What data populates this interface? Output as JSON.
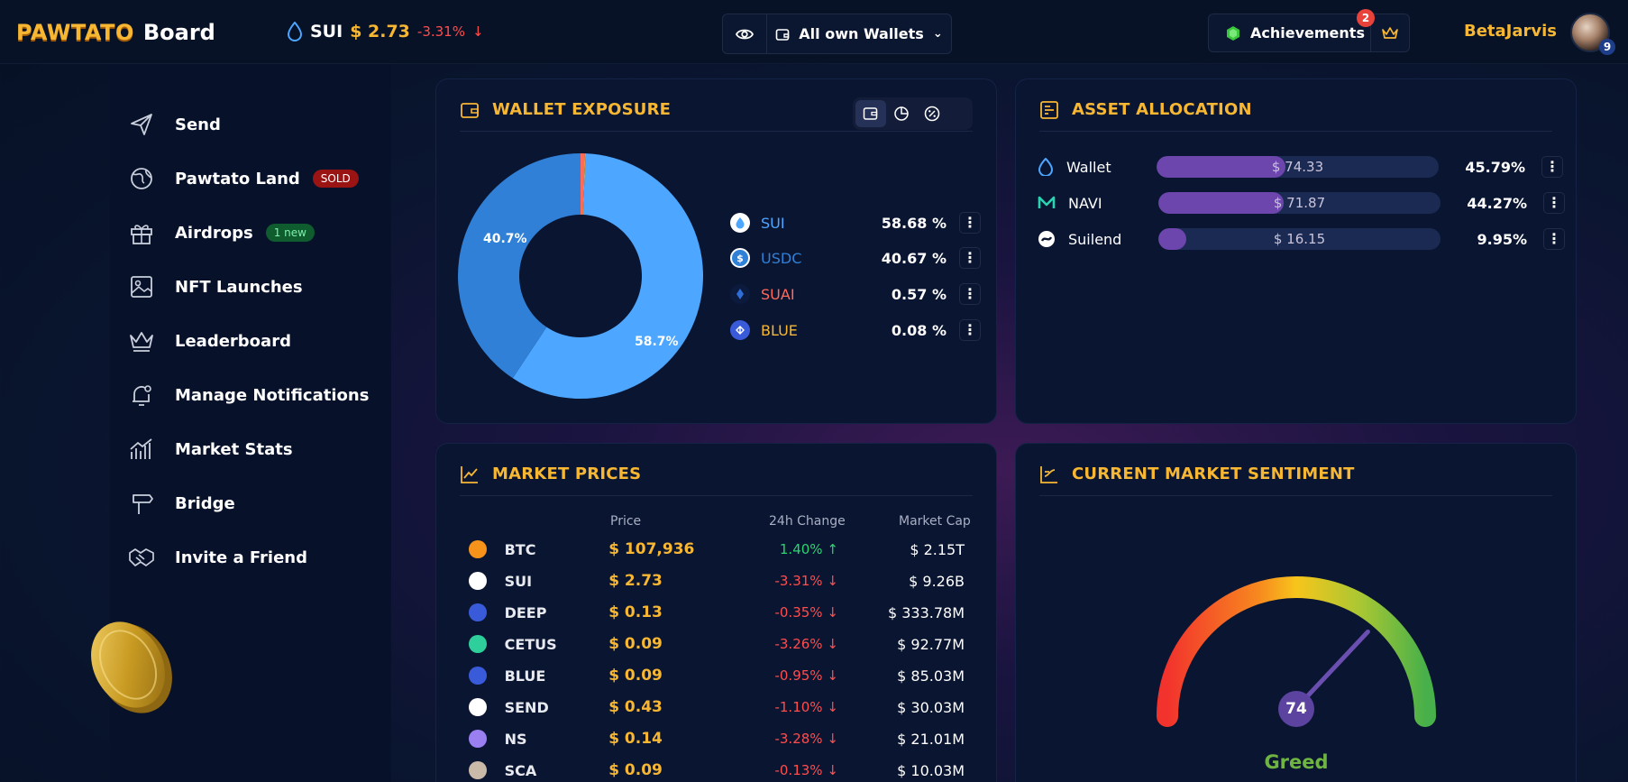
{
  "header": {
    "brand": "PAWTATO",
    "board": "Board",
    "ticker": {
      "symbol": "SUI",
      "price": "$ 2.73",
      "change": "-3.31%"
    },
    "wallet_selector": "All own Wallets",
    "achievements": {
      "label": "Achievements",
      "count": "2"
    },
    "username": "BetaJarvis",
    "avatar_level": "9"
  },
  "sidebar": {
    "items": [
      {
        "label": "Send",
        "icon": "send-icon"
      },
      {
        "label": "Pawtato Land",
        "badge": "SOLD",
        "icon": "globe-icon"
      },
      {
        "label": "Airdrops",
        "badge": "1 new",
        "icon": "gift-icon"
      },
      {
        "label": "NFT Launches",
        "icon": "image-icon"
      },
      {
        "label": "Leaderboard",
        "icon": "crown-icon"
      },
      {
        "label": "Manage Notifications",
        "icon": "bell-icon"
      },
      {
        "label": "Market Stats",
        "icon": "chart-icon"
      },
      {
        "label": "Bridge",
        "icon": "bridge-icon"
      },
      {
        "label": "Invite a Friend",
        "icon": "handshake-icon"
      }
    ]
  },
  "wallet_exposure": {
    "title": "WALLET EXPOSURE",
    "slice_labels": {
      "sui": "58.7%",
      "usdc": "40.7%"
    },
    "legend": [
      {
        "name": "SUI",
        "pct": "58.68 %",
        "color": "#4da6ff"
      },
      {
        "name": "USDC",
        "pct": "40.67 %",
        "color": "#2f80d6"
      },
      {
        "name": "SUAI",
        "pct": "0.57 %",
        "color": "#ff6b5b"
      },
      {
        "name": "BLUE",
        "pct": "0.08 %",
        "color": "#f7b733"
      }
    ]
  },
  "chart_data": {
    "type": "pie",
    "categories": [
      "SUI",
      "USDC",
      "SUAI",
      "BLUE"
    ],
    "values": [
      58.68,
      40.67,
      0.57,
      0.08
    ]
  },
  "asset_allocation": {
    "title": "ASSET ALLOCATION",
    "rows": [
      {
        "name": "Wallet",
        "value": "$ 74.33",
        "pct": "45.79%",
        "fill": 0.4579
      },
      {
        "name": "NAVI",
        "value": "$ 71.87",
        "pct": "44.27%",
        "fill": 0.4427
      },
      {
        "name": "Suilend",
        "value": "$ 16.15",
        "pct": "9.95%",
        "fill": 0.0995
      }
    ]
  },
  "market_prices": {
    "title": "MARKET PRICES",
    "columns": {
      "price": "Price",
      "change": "24h Change",
      "cap": "Market Cap"
    },
    "rows": [
      {
        "sym": "BTC",
        "price": "$ 107,936",
        "change": "1.40%",
        "dir": "up",
        "cap": "$ 2.15T",
        "color": "#f7931a"
      },
      {
        "sym": "SUI",
        "price": "$ 2.73",
        "change": "-3.31%",
        "dir": "down",
        "cap": "$ 9.26B",
        "color": "#ffffff"
      },
      {
        "sym": "DEEP",
        "price": "$ 0.13",
        "change": "-0.35%",
        "dir": "down",
        "cap": "$ 333.78M",
        "color": "#3a5bd9"
      },
      {
        "sym": "CETUS",
        "price": "$ 0.09",
        "change": "-3.26%",
        "dir": "down",
        "cap": "$ 92.77M",
        "color": "#2ecf9a"
      },
      {
        "sym": "BLUE",
        "price": "$ 0.09",
        "change": "-0.95%",
        "dir": "down",
        "cap": "$ 85.03M",
        "color": "#3a5bd9"
      },
      {
        "sym": "SEND",
        "price": "$ 0.43",
        "change": "-1.10%",
        "dir": "down",
        "cap": "$ 30.03M",
        "color": "#ffffff"
      },
      {
        "sym": "NS",
        "price": "$ 0.14",
        "change": "-3.28%",
        "dir": "down",
        "cap": "$ 21.01M",
        "color": "#9a7ff0"
      },
      {
        "sym": "SCA",
        "price": "$ 0.09",
        "change": "-0.13%",
        "dir": "down",
        "cap": "$ 10.03M",
        "color": "#c9b9a8"
      }
    ]
  },
  "sentiment": {
    "title": "CURRENT MARKET SENTIMENT",
    "value": "74",
    "label": "Greed"
  }
}
